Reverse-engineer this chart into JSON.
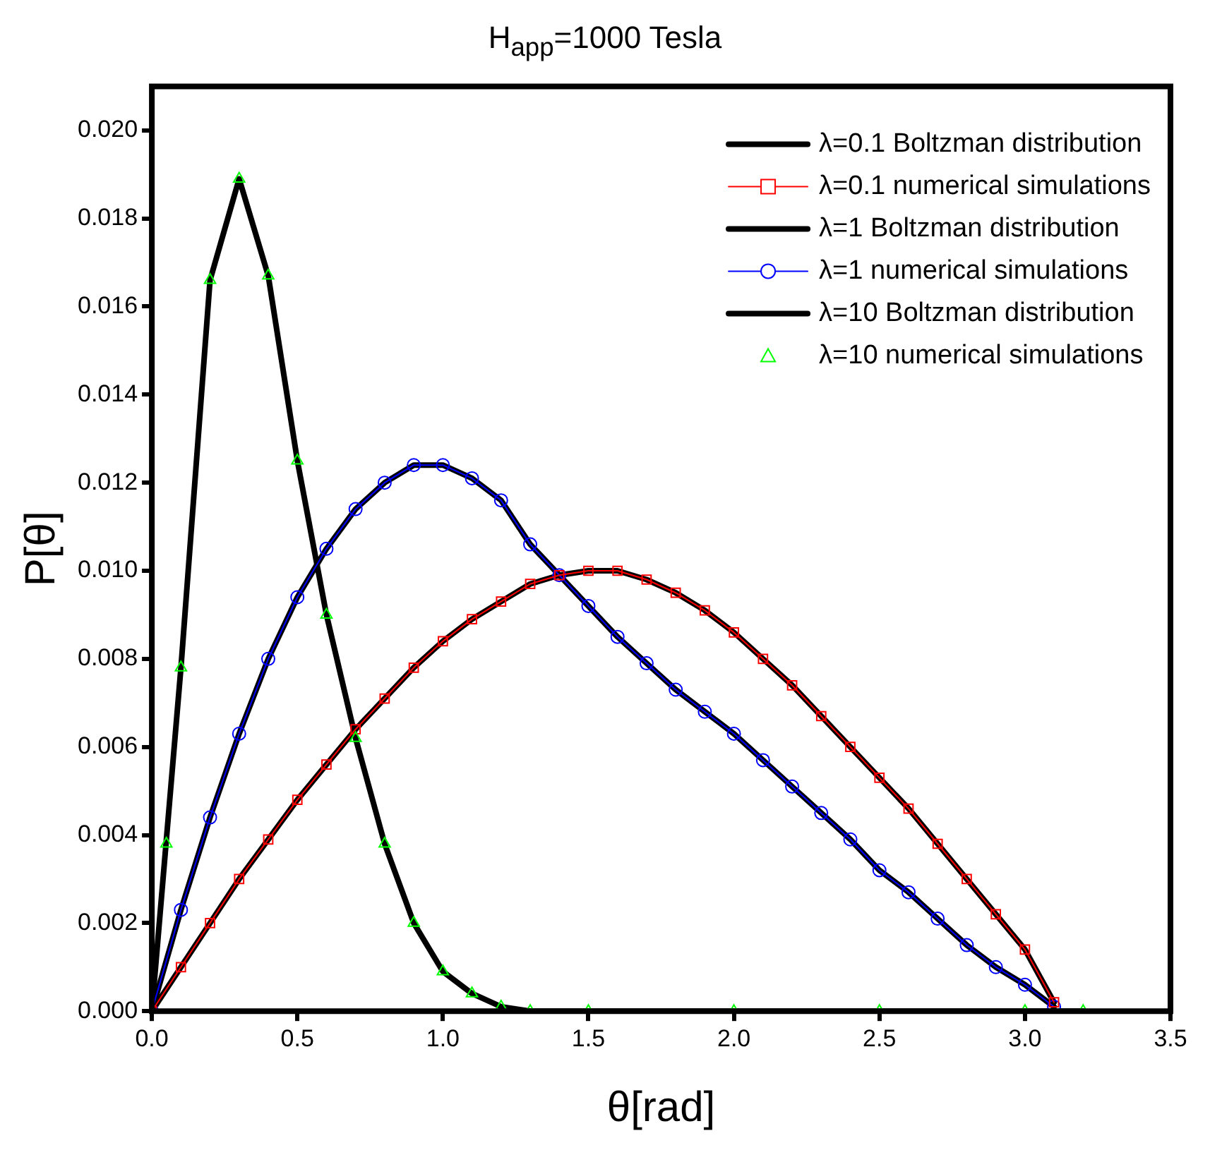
{
  "chart_data": {
    "type": "line",
    "title": "H$_{app}$=1000 Tesla",
    "xlabel": "θ[rad]",
    "ylabel": "P[θ]",
    "x": [
      0,
      0.1,
      0.2,
      0.3,
      0.4,
      0.5,
      0.6,
      0.7,
      0.8,
      0.9,
      1.0,
      1.1,
      1.2,
      1.3,
      1.4,
      1.5,
      1.6,
      1.7,
      1.8,
      1.9,
      2.0,
      2.1,
      2.2,
      2.3,
      2.4,
      2.5,
      2.6,
      2.7,
      2.8,
      2.9,
      3.0,
      3.1
    ],
    "xlim": [
      0,
      3.5
    ],
    "xticks": [
      {
        "value": 0,
        "label": "0.0"
      },
      {
        "value": 0.5,
        "label": "0.5"
      },
      {
        "value": 1,
        "label": "1.0"
      },
      {
        "value": 1.5,
        "label": "1.5"
      },
      {
        "value": 2,
        "label": "2.0"
      },
      {
        "value": 2.5,
        "label": "2.5"
      },
      {
        "value": 3,
        "label": "3.0"
      },
      {
        "value": 3.5,
        "label": "3.5"
      }
    ],
    "ylim": [
      0,
      0.021
    ],
    "yticks": [
      {
        "value": 0,
        "label": "0.000"
      },
      {
        "value": 0.002,
        "label": "0.002"
      },
      {
        "value": 0.004,
        "label": "0.004"
      },
      {
        "value": 0.006,
        "label": "0.006"
      },
      {
        "value": 0.008,
        "label": "0.008"
      },
      {
        "value": 0.01,
        "label": "0.010"
      },
      {
        "value": 0.012,
        "label": "0.012"
      },
      {
        "value": 0.014,
        "label": "0.014"
      },
      {
        "value": 0.016,
        "label": "0.016"
      },
      {
        "value": 0.018,
        "label": "0.018"
      },
      {
        "value": 0.02,
        "label": "0.020"
      }
    ],
    "grid": false,
    "legend": "top right",
    "series": [
      {
        "name": "λ=0.1 Boltzman distribution",
        "color": "#000000",
        "marker": "none",
        "line_style": "solid",
        "values": [
          0,
          0.001,
          0.002,
          0.003,
          0.0039,
          0.0048,
          0.0056,
          0.0064,
          0.0071,
          0.0078,
          0.0084,
          0.0089,
          0.0093,
          0.0097,
          0.0099,
          0.01,
          0.01,
          0.0098,
          0.0095,
          0.0091,
          0.0086,
          0.008,
          0.0074,
          0.0067,
          0.006,
          0.0053,
          0.0046,
          0.0038,
          0.003,
          0.0022,
          0.0014,
          0.0002
        ]
      },
      {
        "name": "λ=0.1 numerical simulations",
        "color": "#ff0000",
        "marker": "square",
        "line_style": "solid",
        "values": [
          0,
          0.001,
          0.002,
          0.003,
          0.0039,
          0.0048,
          0.0056,
          0.0064,
          0.0071,
          0.0078,
          0.0084,
          0.0089,
          0.0093,
          0.0097,
          0.0099,
          0.01,
          0.01,
          0.0098,
          0.0095,
          0.0091,
          0.0086,
          0.008,
          0.0074,
          0.0067,
          0.006,
          0.0053,
          0.0046,
          0.0038,
          0.003,
          0.0022,
          0.0014,
          0.0002
        ]
      },
      {
        "name": "λ=1 Boltzman distribution",
        "color": "#000000",
        "marker": "none",
        "line_style": "solid",
        "values": [
          0,
          0.0023,
          0.0044,
          0.0063,
          0.008,
          0.0094,
          0.0105,
          0.0114,
          0.012,
          0.0124,
          0.0124,
          0.0121,
          0.0116,
          0.0106,
          0.0099,
          0.0092,
          0.0085,
          0.0079,
          0.0073,
          0.0068,
          0.0063,
          0.0057,
          0.0051,
          0.0045,
          0.0039,
          0.0032,
          0.0027,
          0.0021,
          0.0015,
          0.001,
          0.0006,
          0.0001
        ]
      },
      {
        "name": "λ=1 numerical simulations",
        "color": "#0000ff",
        "marker": "circle",
        "line_style": "solid",
        "values": [
          0,
          0.0023,
          0.0044,
          0.0063,
          0.008,
          0.0094,
          0.0105,
          0.0114,
          0.012,
          0.0124,
          0.0124,
          0.0121,
          0.0116,
          0.0106,
          0.0099,
          0.0092,
          0.0085,
          0.0079,
          0.0073,
          0.0068,
          0.0063,
          0.0057,
          0.0051,
          0.0045,
          0.0039,
          0.0032,
          0.0027,
          0.0021,
          0.0015,
          0.001,
          0.0006,
          0.0001
        ]
      },
      {
        "name": "λ=10 Boltzman distribution",
        "color": "#000000",
        "marker": "none",
        "line_style": "solid",
        "x": [
          0,
          0.1,
          0.2,
          0.3,
          0.4,
          0.5,
          0.6,
          0.7,
          0.8,
          0.9,
          1.0,
          1.1,
          1.2,
          1.3,
          1.5,
          2.0,
          2.5,
          3.0,
          3.2
        ],
        "values": [
          0,
          0.0078,
          0.0166,
          0.0189,
          0.0167,
          0.0125,
          0.009,
          0.0062,
          0.0038,
          0.002,
          0.0009,
          0.0004,
          0.0001,
          0,
          0,
          0,
          0,
          0,
          0
        ]
      },
      {
        "name": "λ=10 numerical simulations",
        "type": "scatter",
        "color": "#00ff00",
        "marker": "triangle",
        "x": [
          0.05,
          0.1,
          0.2,
          0.3,
          0.4,
          0.5,
          0.6,
          0.7,
          0.8,
          0.9,
          1.0,
          1.1,
          1.2,
          1.3,
          1.5,
          2.0,
          2.5,
          3.0,
          3.2
        ],
        "values": [
          0.0038,
          0.0078,
          0.0166,
          0.0189,
          0.0167,
          0.0125,
          0.009,
          0.0062,
          0.0038,
          0.002,
          0.0009,
          0.0004,
          0.0001,
          0,
          0,
          0,
          0,
          0,
          0
        ]
      }
    ]
  }
}
